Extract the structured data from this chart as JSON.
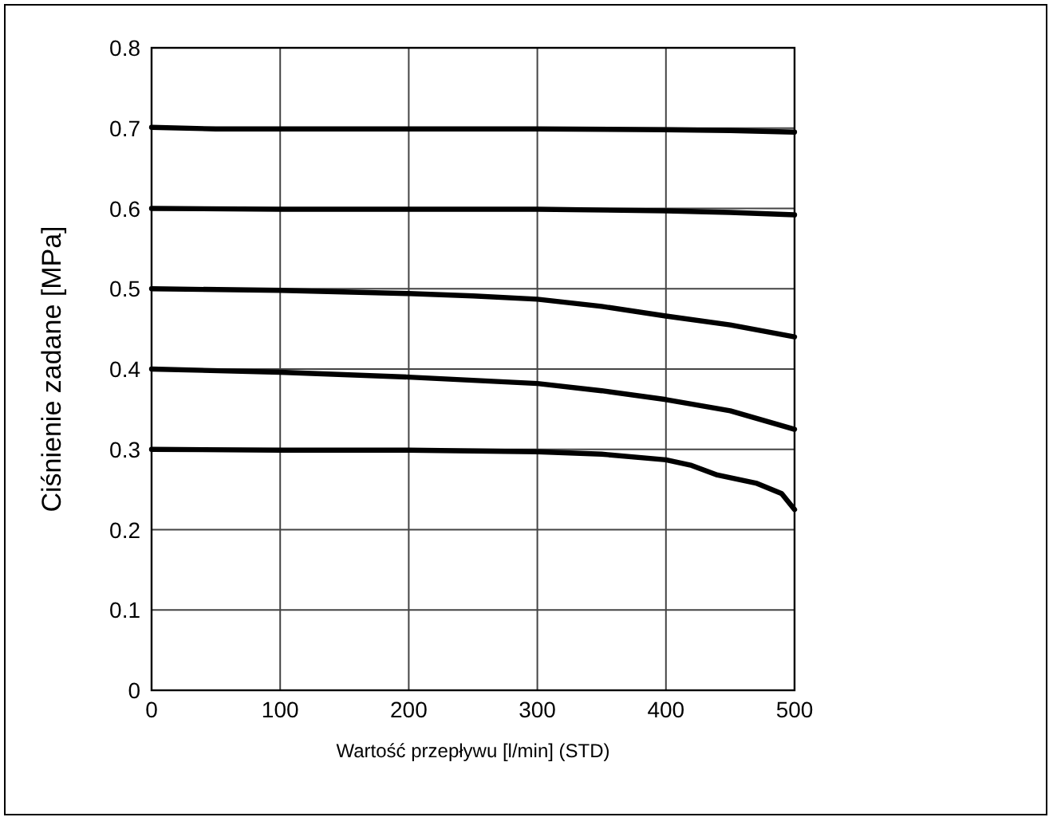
{
  "chart_data": {
    "type": "line",
    "xlabel": "Wartość przepływu [l/min] (STD)",
    "ylabel": "Ciśnienie zadane [MPa]",
    "xlim": [
      0,
      500
    ],
    "ylim": [
      0,
      0.8
    ],
    "xticks": [
      0,
      100,
      200,
      300,
      400,
      500
    ],
    "yticks": [
      0,
      0.1,
      0.2,
      0.3,
      0.4,
      0.5,
      0.6,
      0.7,
      0.8
    ],
    "grid": true,
    "marker": "none",
    "line_style": "solid",
    "series": [
      {
        "color": "#000000",
        "x": [
          0,
          50,
          100,
          200,
          300,
          400,
          450,
          500
        ],
        "values": [
          0.701,
          0.699,
          0.699,
          0.699,
          0.699,
          0.698,
          0.697,
          0.695
        ]
      },
      {
        "color": "#000000",
        "x": [
          0,
          100,
          200,
          300,
          400,
          450,
          500
        ],
        "values": [
          0.6,
          0.599,
          0.599,
          0.599,
          0.597,
          0.595,
          0.592
        ]
      },
      {
        "color": "#000000",
        "x": [
          0,
          100,
          200,
          250,
          300,
          350,
          400,
          450,
          500
        ],
        "values": [
          0.5,
          0.498,
          0.494,
          0.491,
          0.487,
          0.478,
          0.466,
          0.455,
          0.44
        ]
      },
      {
        "color": "#000000",
        "x": [
          0,
          100,
          200,
          300,
          350,
          400,
          450,
          500
        ],
        "values": [
          0.4,
          0.396,
          0.39,
          0.382,
          0.373,
          0.362,
          0.348,
          0.325
        ]
      },
      {
        "color": "#000000",
        "x": [
          0,
          100,
          200,
          300,
          350,
          400,
          420,
          440,
          470,
          490,
          500
        ],
        "values": [
          0.3,
          0.299,
          0.299,
          0.297,
          0.294,
          0.287,
          0.28,
          0.268,
          0.258,
          0.245,
          0.225
        ]
      }
    ]
  }
}
